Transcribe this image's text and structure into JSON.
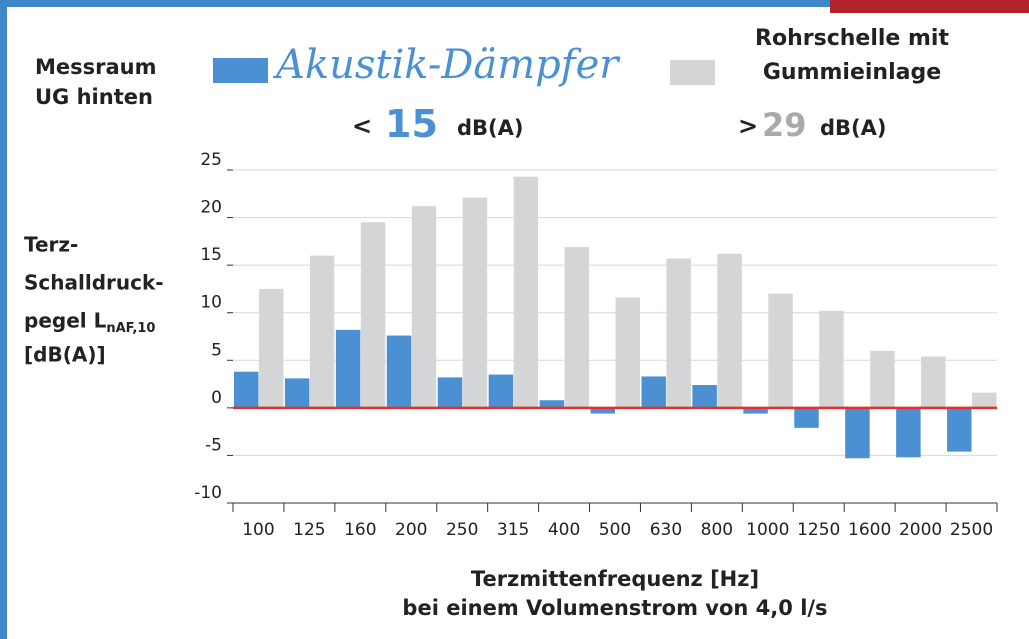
{
  "chart_data": {
    "type": "bar",
    "room_label": "Messraum UG hinten",
    "categories": [
      "100",
      "125",
      "160",
      "200",
      "250",
      "315",
      "400",
      "500",
      "630",
      "800",
      "1000",
      "1250",
      "1600",
      "2000",
      "2500"
    ],
    "series": [
      {
        "name": "Akustik-Dämpfer",
        "color": "#4a90d2",
        "values": [
          3.8,
          3.1,
          8.2,
          7.6,
          3.2,
          3.5,
          0.8,
          -0.6,
          3.3,
          2.4,
          -0.6,
          -2.1,
          -5.3,
          -5.2,
          -4.6
        ]
      },
      {
        "name": "Rohrschelle mit Gummieinlage",
        "color": "#d4d5d7",
        "values": [
          12.5,
          16.0,
          19.5,
          21.2,
          22.1,
          24.3,
          16.9,
          11.6,
          15.7,
          16.2,
          12.0,
          10.2,
          6.0,
          5.4,
          1.6
        ]
      }
    ],
    "summary": [
      {
        "symbol": "<",
        "value": 15,
        "unit": "dB(A)"
      },
      {
        "symbol": ">",
        "value": 29,
        "unit": "dB(A)"
      }
    ],
    "y_label_lines": [
      "Terz-",
      "Schalldruck-",
      "pegel L",
      "[dB(A)]"
    ],
    "y_label_subscript": "nAF,10",
    "x_label_lines": [
      "Terzmittenfrequenz [Hz]",
      "bei einem Volumenstrom von 4,0 l/s"
    ],
    "ylim": [
      -10,
      25
    ],
    "yticks": [
      -10,
      -5,
      0,
      5,
      10,
      15,
      20,
      25
    ],
    "grid": true,
    "zero_line_color": "#e3302d"
  }
}
